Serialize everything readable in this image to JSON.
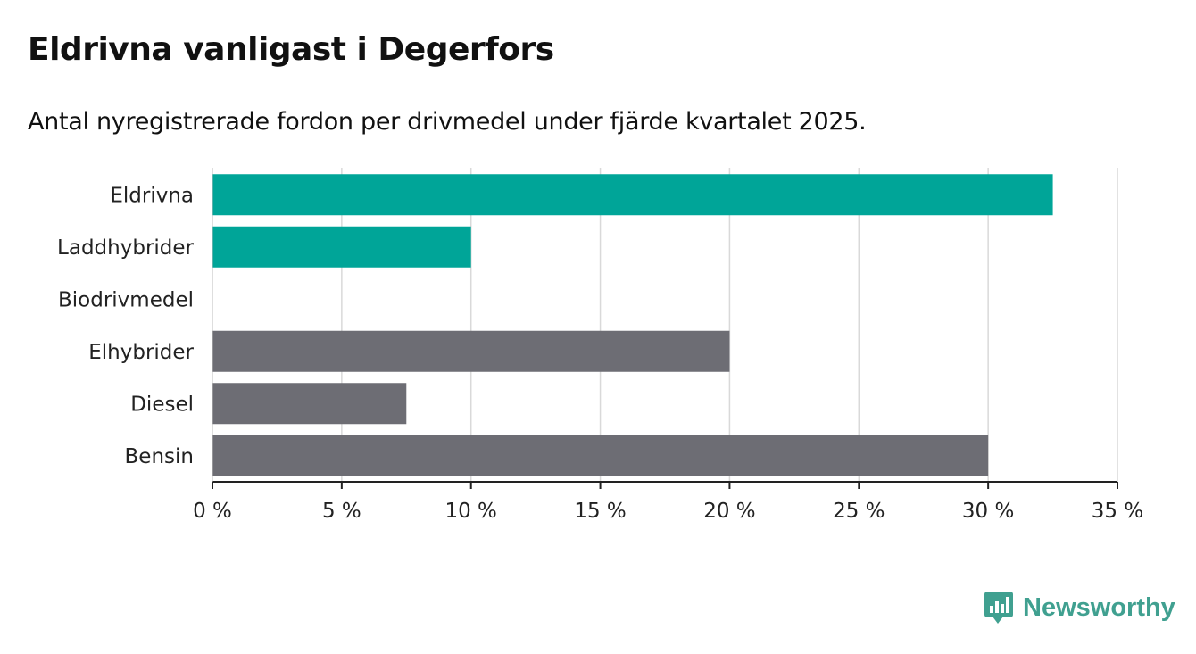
{
  "title": "Eldrivna vanligast i Degerfors",
  "subtitle": "Antal nyregistrerade fordon per drivmedel under fjärde kvartalet 2025.",
  "brand": {
    "name": "Newsworthy",
    "icon": "newsworthy-logo-icon",
    "color": "#40a090"
  },
  "colors": {
    "highlight": "#00a598",
    "default": "#6d6d74",
    "grid": "#d9d9d9",
    "axis": "#222222"
  },
  "chart_data": {
    "type": "bar",
    "orientation": "horizontal",
    "categories": [
      "Eldrivna",
      "Laddhybrider",
      "Biodrivmedel",
      "Elhybrider",
      "Diesel",
      "Bensin"
    ],
    "values": [
      32.5,
      10,
      0,
      20,
      7.5,
      30
    ],
    "highlighted": [
      true,
      true,
      true,
      false,
      false,
      false
    ],
    "unit": "%",
    "xlim": [
      0,
      35
    ],
    "xticks": [
      0,
      5,
      10,
      15,
      20,
      25,
      30,
      35
    ],
    "xtick_labels": [
      "0 %",
      "5 %",
      "10 %",
      "15 %",
      "20 %",
      "25 %",
      "30 %",
      "35 %"
    ],
    "grid": true,
    "xlabel": "",
    "ylabel": ""
  }
}
